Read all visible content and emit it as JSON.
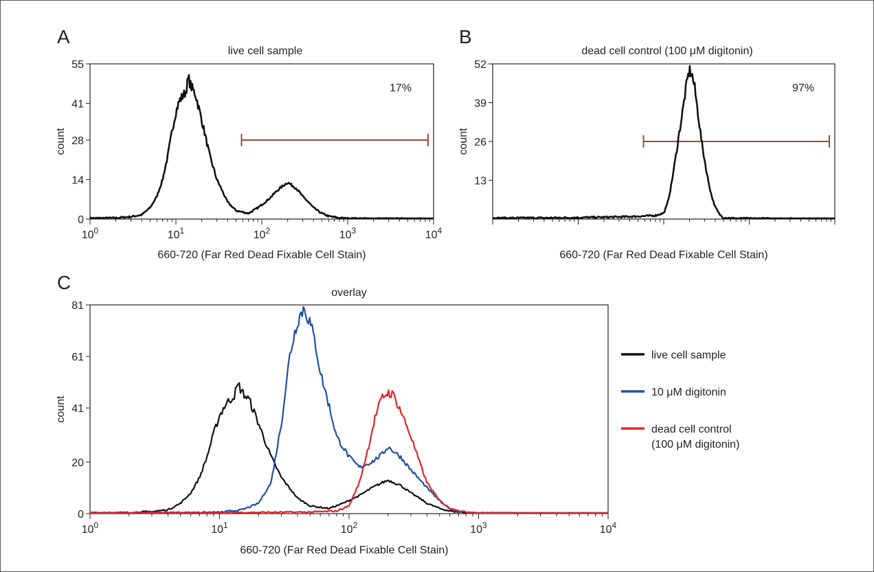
{
  "chart_data": [
    {
      "panel": "A",
      "type": "line",
      "title": "live cell sample",
      "xlabel": "660-720 (Far Red Dead Fixable Cell Stain)",
      "ylabel": "count",
      "xscale": "log",
      "xlim": [
        1,
        10000
      ],
      "ylim": [
        0,
        55
      ],
      "x_ticks": [
        "10^0",
        "10^1",
        "10^2",
        "10^3",
        "10^4"
      ],
      "y_ticks": [
        "0",
        "14",
        "28",
        "41",
        "55"
      ],
      "gate": {
        "x_start": 58,
        "x_end": 9000,
        "y": 28,
        "label": "17%",
        "color": "#a0463c"
      },
      "series": [
        {
          "color": "#111111",
          "points": [
            [
              1,
              0.3
            ],
            [
              2,
              0.4
            ],
            [
              3,
              0.8
            ],
            [
              4,
              1.5
            ],
            [
              5,
              4
            ],
            [
              6,
              8
            ],
            [
              7,
              14
            ],
            [
              8,
              22
            ],
            [
              9,
              31
            ],
            [
              10,
              38
            ],
            [
              11,
              42
            ],
            [
              13,
              45
            ],
            [
              14,
              50
            ],
            [
              15,
              47
            ],
            [
              17,
              44
            ],
            [
              20,
              35
            ],
            [
              25,
              22
            ],
            [
              30,
              14
            ],
            [
              40,
              6
            ],
            [
              50,
              3
            ],
            [
              70,
              2
            ],
            [
              90,
              4
            ],
            [
              120,
              7
            ],
            [
              150,
              10
            ],
            [
              180,
              12
            ],
            [
              200,
              13
            ],
            [
              250,
              11
            ],
            [
              300,
              8
            ],
            [
              350,
              6
            ],
            [
              400,
              4
            ],
            [
              500,
              2
            ],
            [
              600,
              1
            ],
            [
              800,
              0.4
            ],
            [
              1000,
              0.2
            ],
            [
              10000,
              0
            ]
          ]
        }
      ]
    },
    {
      "panel": "B",
      "type": "line",
      "title": "dead cell control (100 μM digitonin)",
      "xlabel": "660-720 (Far Red Dead Fixable Cell Stain)",
      "ylabel": "count",
      "xscale": "log",
      "xlim": [
        1,
        10000
      ],
      "ylim": [
        0,
        52
      ],
      "y_ticks": [
        "13",
        "26",
        "39",
        "52"
      ],
      "gate": {
        "x_start": 58,
        "x_end": 9000,
        "y": 26,
        "label": "97%",
        "color": "#a0463c"
      },
      "series": [
        {
          "color": "#111111",
          "points": [
            [
              1,
              0.3
            ],
            [
              5,
              0.4
            ],
            [
              10,
              0.5
            ],
            [
              20,
              0.6
            ],
            [
              40,
              0.8
            ],
            [
              60,
              1.0
            ],
            [
              80,
              1.2
            ],
            [
              100,
              2
            ],
            [
              110,
              5
            ],
            [
              120,
              10
            ],
            [
              130,
              16
            ],
            [
              140,
              22
            ],
            [
              150,
              28
            ],
            [
              160,
              33
            ],
            [
              170,
              38
            ],
            [
              180,
              43
            ],
            [
              190,
              47
            ],
            [
              200,
              50
            ],
            [
              215,
              48
            ],
            [
              230,
              44
            ],
            [
              250,
              36
            ],
            [
              280,
              25
            ],
            [
              320,
              15
            ],
            [
              360,
              8
            ],
            [
              400,
              4
            ],
            [
              450,
              1.5
            ],
            [
              500,
              0.5
            ],
            [
              700,
              0.2
            ],
            [
              10000,
              0
            ]
          ]
        }
      ]
    },
    {
      "panel": "C",
      "type": "line",
      "title": "overlay",
      "xlabel": "660-720 (Far Red Dead Fixable Cell Stain)",
      "ylabel": "count",
      "xscale": "log",
      "xlim": [
        1,
        10000
      ],
      "ylim": [
        0,
        81
      ],
      "x_ticks": [
        "10^0",
        "10^1",
        "10^2",
        "10^3",
        "10^4"
      ],
      "y_ticks": [
        "0",
        "20",
        "41",
        "61",
        "81"
      ],
      "legend_position": "right",
      "series": [
        {
          "name": "live cell sample",
          "color": "#111111",
          "points": [
            [
              1,
              0.3
            ],
            [
              2,
              0.4
            ],
            [
              3,
              0.8
            ],
            [
              4,
              1.5
            ],
            [
              5,
              4
            ],
            [
              6,
              8
            ],
            [
              7,
              14
            ],
            [
              8,
              22
            ],
            [
              9,
              31
            ],
            [
              10,
              38
            ],
            [
              11,
              42
            ],
            [
              13,
              46
            ],
            [
              14,
              50
            ],
            [
              15,
              47
            ],
            [
              17,
              44
            ],
            [
              20,
              35
            ],
            [
              25,
              22
            ],
            [
              30,
              14
            ],
            [
              40,
              6
            ],
            [
              50,
              3
            ],
            [
              70,
              2
            ],
            [
              90,
              4
            ],
            [
              120,
              7
            ],
            [
              150,
              10
            ],
            [
              180,
              12
            ],
            [
              200,
              13
            ],
            [
              250,
              11
            ],
            [
              300,
              8
            ],
            [
              350,
              6
            ],
            [
              400,
              4
            ],
            [
              500,
              2
            ],
            [
              600,
              1
            ],
            [
              800,
              0.4
            ],
            [
              1000,
              0.2
            ],
            [
              10000,
              0
            ]
          ]
        },
        {
          "name": "10 μM digitonin",
          "color": "#1f4fa2",
          "points": [
            [
              1,
              0.2
            ],
            [
              10,
              0.5
            ],
            [
              15,
              1.5
            ],
            [
              20,
              4
            ],
            [
              25,
              12
            ],
            [
              30,
              35
            ],
            [
              35,
              62
            ],
            [
              40,
              75
            ],
            [
              45,
              80
            ],
            [
              50,
              74
            ],
            [
              55,
              66
            ],
            [
              60,
              55
            ],
            [
              70,
              42
            ],
            [
              80,
              30
            ],
            [
              100,
              22
            ],
            [
              120,
              18
            ],
            [
              150,
              20
            ],
            [
              180,
              23
            ],
            [
              200,
              26
            ],
            [
              250,
              22
            ],
            [
              300,
              17
            ],
            [
              400,
              10
            ],
            [
              500,
              5
            ],
            [
              600,
              2
            ],
            [
              800,
              0.5
            ],
            [
              1000,
              0.2
            ],
            [
              10000,
              0
            ]
          ]
        },
        {
          "name": "dead cell control\n(100 μM digitonin)",
          "color": "#e0242c",
          "points": [
            [
              1,
              0.2
            ],
            [
              10,
              0.4
            ],
            [
              50,
              0.6
            ],
            [
              80,
              1.0
            ],
            [
              100,
              3
            ],
            [
              120,
              12
            ],
            [
              140,
              25
            ],
            [
              160,
              38
            ],
            [
              180,
              45
            ],
            [
              200,
              47
            ],
            [
              220,
              46
            ],
            [
              250,
              40
            ],
            [
              300,
              30
            ],
            [
              350,
              20
            ],
            [
              400,
              12
            ],
            [
              500,
              5
            ],
            [
              600,
              2
            ],
            [
              800,
              0.5
            ],
            [
              1000,
              0.2
            ],
            [
              10000,
              0
            ]
          ]
        }
      ],
      "legend": [
        {
          "line1": "live cell sample",
          "line2": "",
          "color": "#111111"
        },
        {
          "line1": "10 μM digitonin",
          "line2": "",
          "color": "#1f4fa2"
        },
        {
          "line1": "dead cell control",
          "line2": "(100 μM digitonin)",
          "color": "#e0242c"
        }
      ]
    }
  ]
}
